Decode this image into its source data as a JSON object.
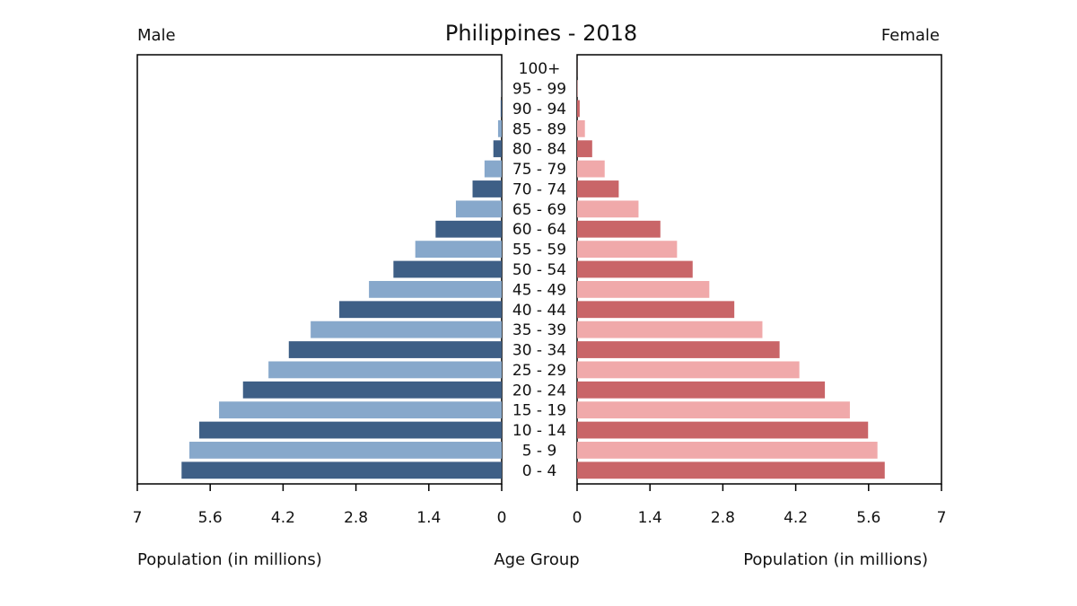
{
  "chart_data": {
    "type": "bar",
    "title": "Philippines - 2018",
    "left_label": "Male",
    "right_label": "Female",
    "xlabel_left": "Population (in millions)",
    "xlabel_center": "Age Group",
    "xlabel_right": "Population (in millions)",
    "xlim": [
      0,
      7
    ],
    "ticks": [
      "0",
      "1.4",
      "2.8",
      "4.2",
      "5.6",
      "7"
    ],
    "categories": [
      "100+",
      "95 - 99",
      "90 - 94",
      "85 - 89",
      "80 - 84",
      "75 - 79",
      "70 - 74",
      "65 - 69",
      "60 - 64",
      "55 - 59",
      "50 - 54",
      "45 - 49",
      "40 - 44",
      "35 - 39",
      "30 - 34",
      "25 - 29",
      "20 - 24",
      "15 - 19",
      "10 - 14",
      "5 - 9",
      "0 - 4"
    ],
    "series": [
      {
        "name": "Male",
        "values": [
          0.001,
          0.005,
          0.02,
          0.07,
          0.16,
          0.33,
          0.56,
          0.88,
          1.27,
          1.66,
          2.08,
          2.55,
          3.12,
          3.67,
          4.09,
          4.48,
          4.97,
          5.43,
          5.81,
          6.0,
          6.15
        ],
        "colors": [
          "#3e5f86",
          "#87a8cb"
        ]
      },
      {
        "name": "Female",
        "values": [
          0.002,
          0.01,
          0.05,
          0.15,
          0.29,
          0.53,
          0.8,
          1.18,
          1.6,
          1.92,
          2.22,
          2.54,
          3.02,
          3.56,
          3.89,
          4.27,
          4.76,
          5.24,
          5.59,
          5.77,
          5.91
        ],
        "colors": [
          "#c96568",
          "#f0a9aa"
        ]
      }
    ],
    "grid": false
  }
}
